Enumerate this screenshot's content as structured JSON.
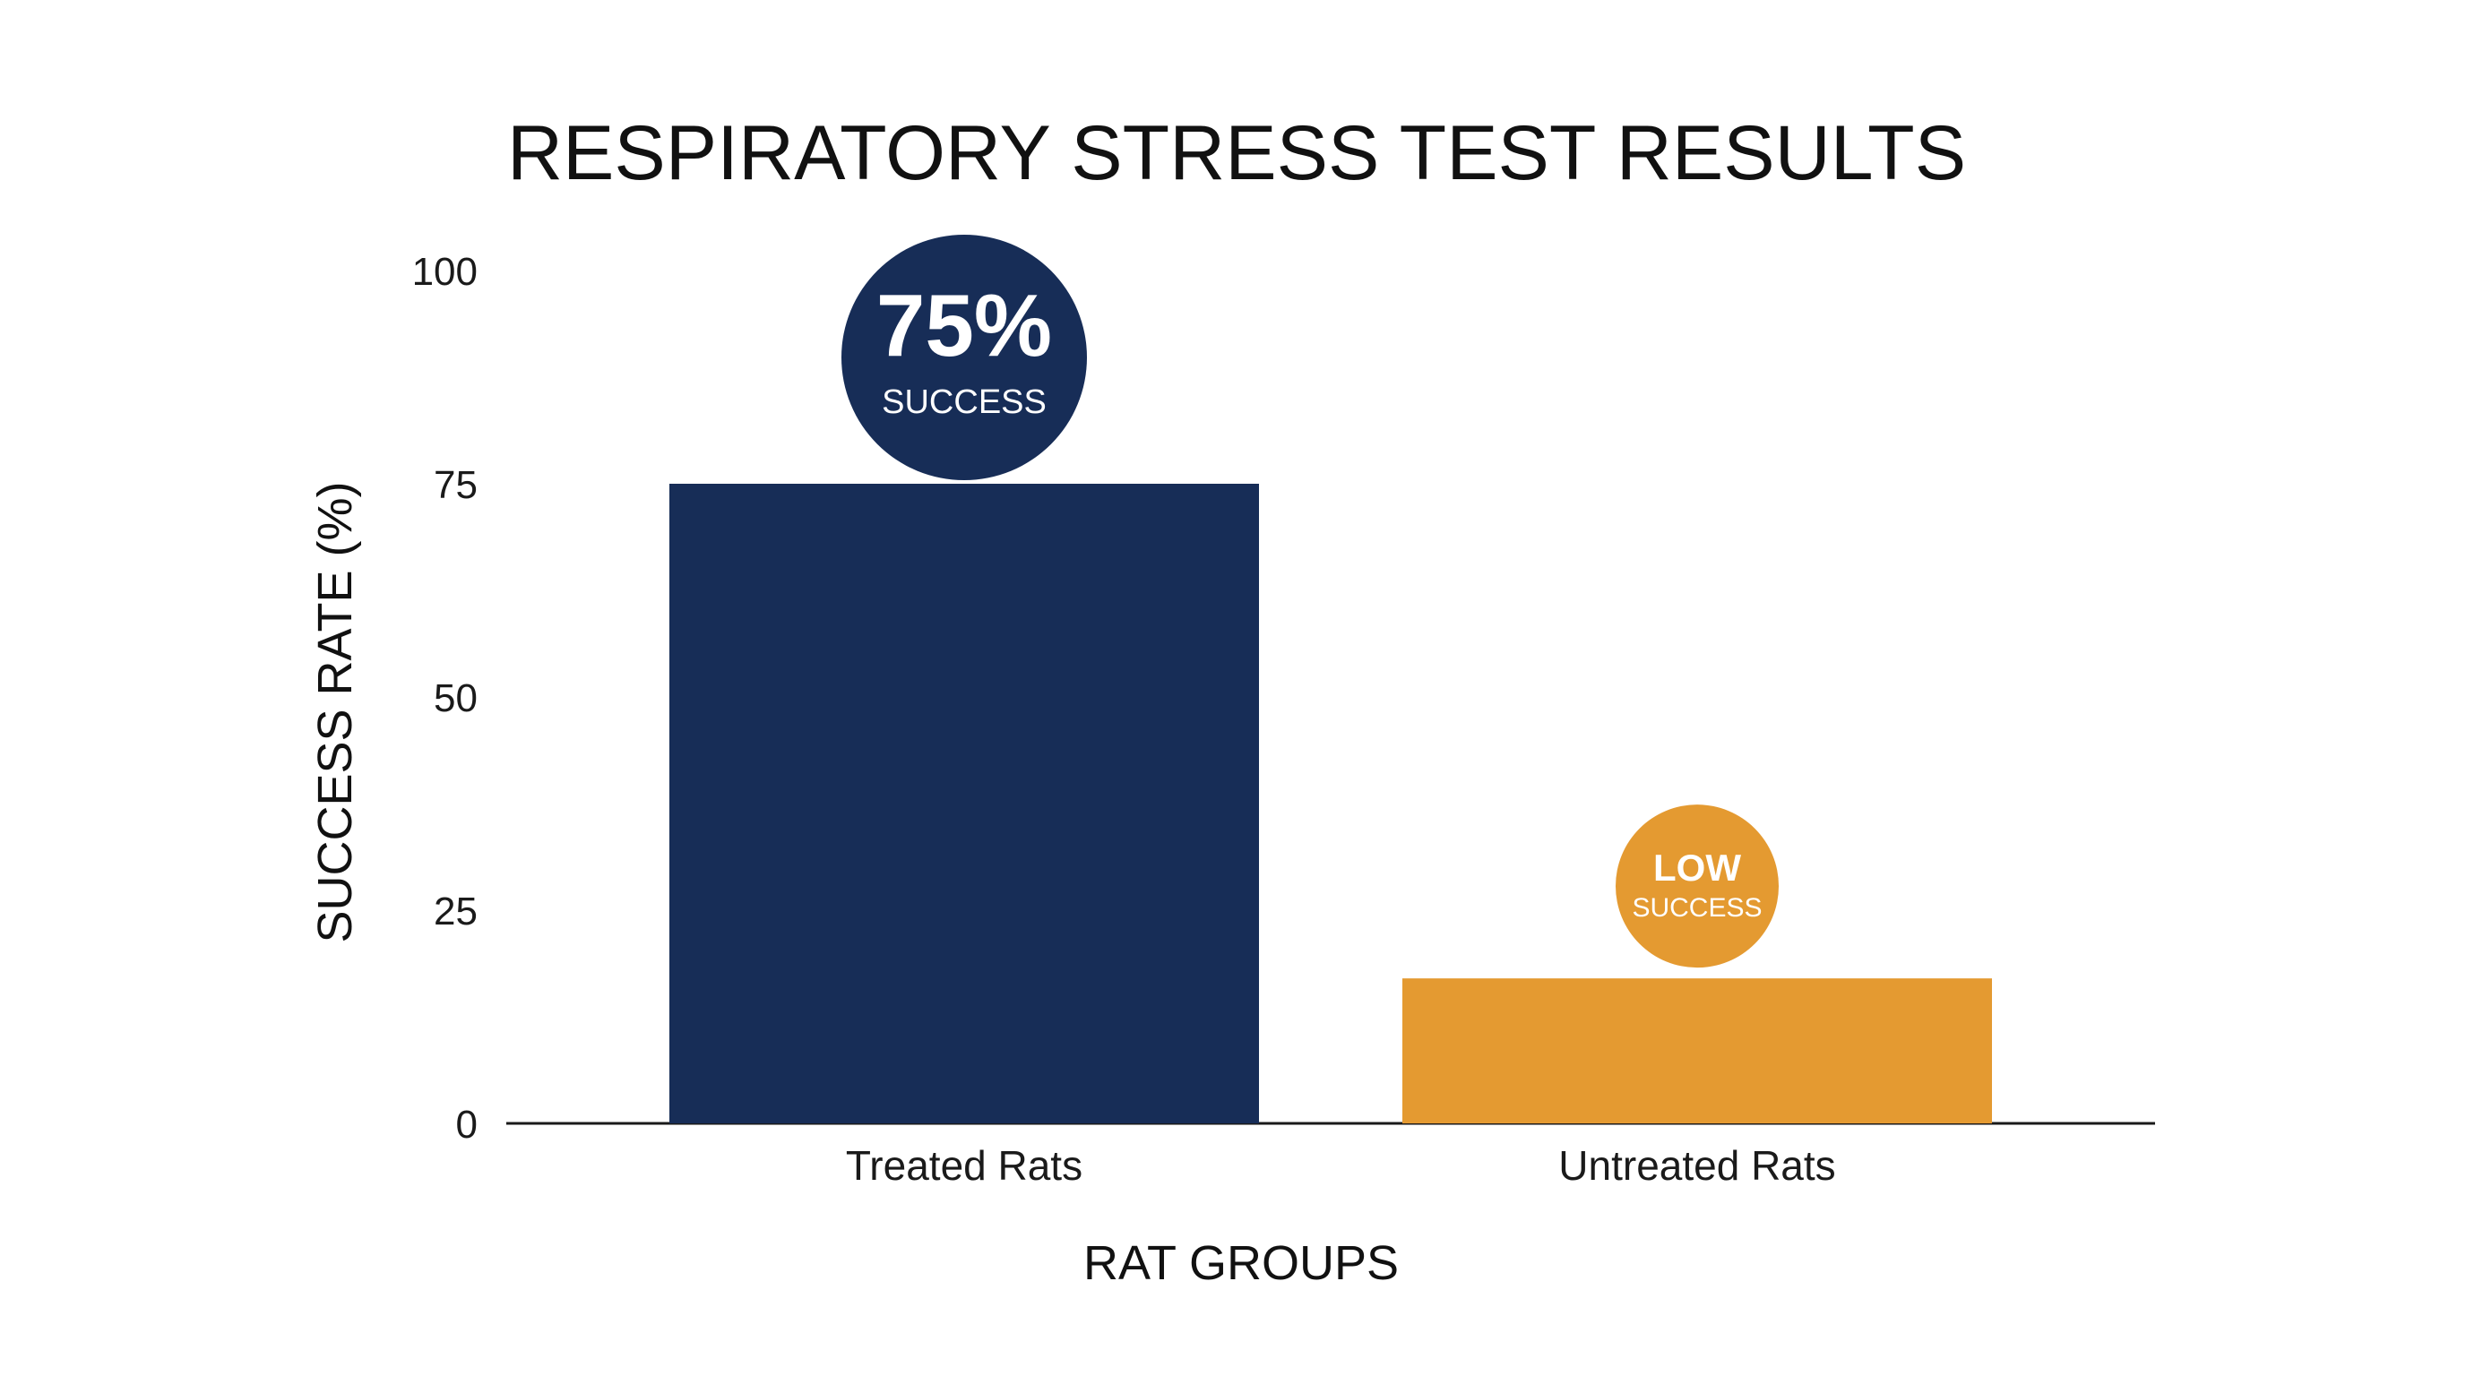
{
  "chart_data": {
    "type": "bar",
    "title": "RESPIRATORY STRESS TEST RESULTS",
    "xlabel": "RAT GROUPS",
    "ylabel": "SUCCESS RATE (%)",
    "ylim": [
      0,
      100
    ],
    "yticks": [
      0,
      25,
      50,
      75,
      100
    ],
    "grid": false,
    "categories": [
      "Treated Rats",
      "Untreated Rats"
    ],
    "values": [
      75,
      17
    ],
    "colors": [
      "#172d57",
      "#e49a31"
    ],
    "annotations": [
      {
        "category": "Treated Rats",
        "main": "75%",
        "sub": "SUCCESS",
        "color": "#172d57"
      },
      {
        "category": "Untreated Rats",
        "main": "LOW",
        "sub": "SUCCESS",
        "color": "#e49a31"
      }
    ]
  }
}
